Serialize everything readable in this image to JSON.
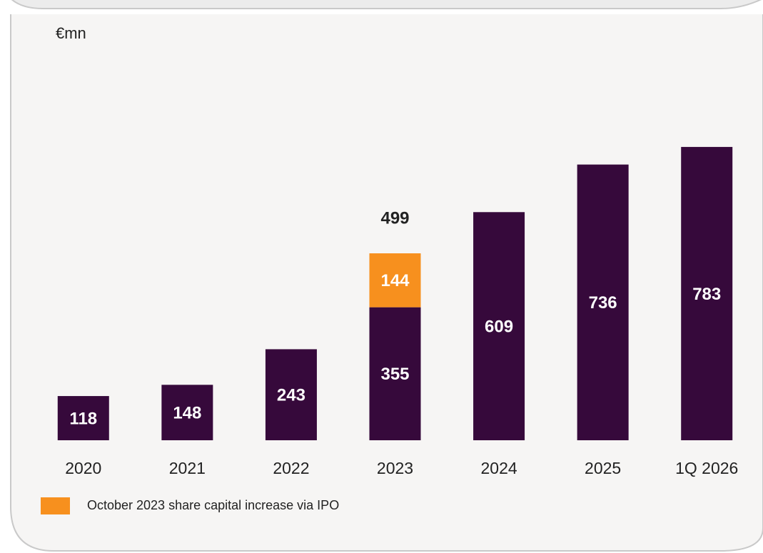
{
  "chart_data": {
    "type": "stacked_bar",
    "y_label": "€mn",
    "categories": [
      "2020",
      "2021",
      "2022",
      "2023",
      "2024",
      "2025",
      "1Q 2026"
    ],
    "series": [
      {
        "color": "#36093b",
        "values": [
          118,
          148,
          243,
          355,
          609,
          736,
          783
        ]
      },
      {
        "name": "October 2023 share capital increase via IPO",
        "color": "#f7901e",
        "values": [
          null,
          null,
          null,
          144,
          null,
          null,
          null
        ]
      }
    ],
    "totals": [
      null,
      null,
      null,
      499,
      null,
      null,
      null
    ],
    "ylim": [
      0,
      1000
    ],
    "legend": "bottom-left"
  }
}
